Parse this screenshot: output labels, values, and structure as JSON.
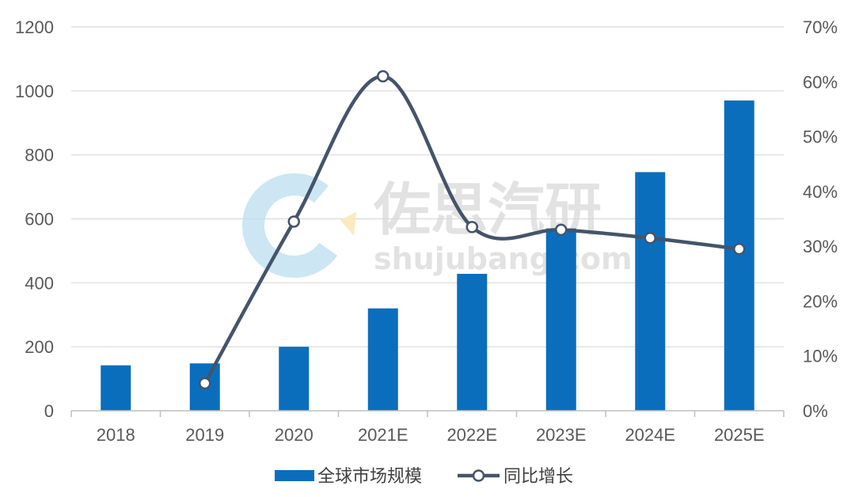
{
  "chart_data": {
    "type": "bar",
    "categories": [
      "2018",
      "2019",
      "2020",
      "2021E",
      "2022E",
      "2023E",
      "2024E",
      "2025E"
    ],
    "series": [
      {
        "name": "全球市场规模",
        "type": "bar",
        "axis": "left",
        "values": [
          142,
          148,
          200,
          320,
          428,
          570,
          746,
          970
        ]
      },
      {
        "name": "同比增长",
        "type": "line",
        "axis": "right",
        "smooth": true,
        "values": [
          null,
          5,
          34.5,
          61,
          33.5,
          33,
          31.5,
          29.5
        ]
      }
    ],
    "y_left": {
      "ylim": [
        0,
        1200
      ],
      "ticks": [
        "0",
        "200",
        "400",
        "600",
        "800",
        "1000",
        "1200"
      ]
    },
    "y_right": {
      "ylim": [
        0,
        70
      ],
      "ticks": [
        "0%",
        "10%",
        "20%",
        "30%",
        "40%",
        "50%",
        "60%",
        "70%"
      ]
    },
    "grid": true,
    "legend_position": "bottom",
    "colors": {
      "bar": "#0a6ebd",
      "line": "#44546a",
      "grid": "#d9d9d9",
      "axis": "#bfbfbf",
      "tick_text": "#595959"
    }
  },
  "watermark": {
    "cn": "佐思汽研",
    "en": "shujubang.com"
  }
}
